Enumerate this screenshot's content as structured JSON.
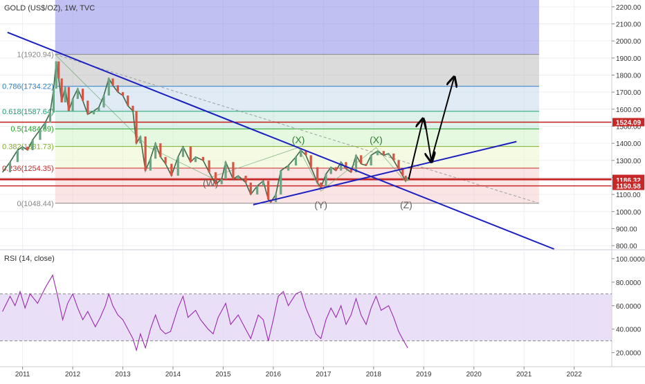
{
  "chart_data": [
    {
      "type": "line",
      "title": "GOLD (US$/OZ), 1W, TVC",
      "series_name": "GOLD (US$/OZ)",
      "y_axis_ticks": [
        "2200.00",
        "2100.00",
        "2000.00",
        "1900.00",
        "1800.00",
        "1700.00",
        "1600.00",
        "1500.00",
        "1400.00",
        "1300.00",
        "1200.00",
        "1100.00",
        "1000.00",
        "900.00",
        "800.00"
      ],
      "ylim": [
        780,
        2240
      ],
      "x_axis_ticks": [
        "2011",
        "2012",
        "2013",
        "2014",
        "2015",
        "2016",
        "2017",
        "2018",
        "2019",
        "2020",
        "2021",
        "2022"
      ],
      "xlim": [
        2010.55,
        2022.75
      ],
      "price": [
        [
          2010.6,
          1230
        ],
        [
          2010.75,
          1290
        ],
        [
          2010.9,
          1360
        ],
        [
          2011.0,
          1380
        ],
        [
          2011.1,
          1360
        ],
        [
          2011.2,
          1420
        ],
        [
          2011.35,
          1480
        ],
        [
          2011.45,
          1520
        ],
        [
          2011.55,
          1580
        ],
        [
          2011.62,
          1720
        ],
        [
          2011.67,
          1880
        ],
        [
          2011.72,
          1780
        ],
        [
          2011.78,
          1640
        ],
        [
          2011.85,
          1730
        ],
        [
          2011.92,
          1590
        ],
        [
          2012.0,
          1660
        ],
        [
          2012.1,
          1720
        ],
        [
          2012.2,
          1650
        ],
        [
          2012.3,
          1570
        ],
        [
          2012.42,
          1590
        ],
        [
          2012.52,
          1610
        ],
        [
          2012.62,
          1680
        ],
        [
          2012.72,
          1780
        ],
        [
          2012.8,
          1740
        ],
        [
          2012.9,
          1700
        ],
        [
          2013.0,
          1680
        ],
        [
          2013.1,
          1620
        ],
        [
          2013.2,
          1590
        ],
        [
          2013.27,
          1400
        ],
        [
          2013.35,
          1440
        ],
        [
          2013.45,
          1240
        ],
        [
          2013.55,
          1310
        ],
        [
          2013.65,
          1400
        ],
        [
          2013.75,
          1320
        ],
        [
          2013.85,
          1280
        ],
        [
          2013.97,
          1210
        ],
        [
          2014.1,
          1320
        ],
        [
          2014.2,
          1380
        ],
        [
          2014.35,
          1290
        ],
        [
          2014.45,
          1320
        ],
        [
          2014.6,
          1300
        ],
        [
          2014.72,
          1230
        ],
        [
          2014.85,
          1160
        ],
        [
          2014.97,
          1190
        ],
        [
          2015.05,
          1290
        ],
        [
          2015.2,
          1190
        ],
        [
          2015.3,
          1210
        ],
        [
          2015.45,
          1170
        ],
        [
          2015.55,
          1100
        ],
        [
          2015.68,
          1150
        ],
        [
          2015.8,
          1180
        ],
        [
          2015.9,
          1070
        ],
        [
          2015.95,
          1055
        ],
        [
          2016.05,
          1100
        ],
        [
          2016.15,
          1240
        ],
        [
          2016.3,
          1270
        ],
        [
          2016.45,
          1320
        ],
        [
          2016.55,
          1360
        ],
        [
          2016.65,
          1330
        ],
        [
          2016.75,
          1260
        ],
        [
          2016.88,
          1170
        ],
        [
          2016.95,
          1140
        ],
        [
          2017.05,
          1220
        ],
        [
          2017.15,
          1260
        ],
        [
          2017.25,
          1240
        ],
        [
          2017.35,
          1290
        ],
        [
          2017.45,
          1250
        ],
        [
          2017.55,
          1230
        ],
        [
          2017.65,
          1330
        ],
        [
          2017.75,
          1280
        ],
        [
          2017.85,
          1270
        ],
        [
          2017.95,
          1330
        ],
        [
          2018.08,
          1355
        ],
        [
          2018.2,
          1330
        ],
        [
          2018.3,
          1340
        ],
        [
          2018.4,
          1300
        ],
        [
          2018.5,
          1250
        ],
        [
          2018.58,
          1210
        ],
        [
          2018.64,
          1180
        ],
        [
          2018.68,
          1200
        ]
      ],
      "fibonacci_levels": [
        {
          "ratio": "1",
          "price": 1920.94,
          "label": "1(1920.94)",
          "band_color": "#b0b0b0"
        },
        {
          "ratio": "0.786",
          "price": 1734.22,
          "label": "0.786(1734.22)",
          "band_color": "#bcd3ea"
        },
        {
          "ratio": "0.618",
          "price": 1587.64,
          "label": "0.618(1587.64)",
          "band_color": "#b5e3d2"
        },
        {
          "ratio": "0.5",
          "price": 1484.69,
          "label": "0.5(1484.69)",
          "band_color": "#c5efbb"
        },
        {
          "ratio": "0.382",
          "price": 1381.73,
          "label": "0.382(1381.73)",
          "band_color": "#e8f5c0"
        },
        {
          "ratio": "0.236",
          "price": 1254.35,
          "label": "0.236(1254.35)",
          "band_color": "#f5c3c3"
        },
        {
          "ratio": "0",
          "price": 1048.44,
          "label": "0(1048.44)",
          "band_color": "#f3c7c7"
        }
      ],
      "horizontal_levels": [
        {
          "label": "1524.09",
          "price": 1524.09,
          "color": "#c62828"
        },
        {
          "label": "1191.59",
          "price": 1191.59,
          "color": "#c62828"
        },
        {
          "label": "1186.32",
          "price": 1186.32,
          "color": "#c62828"
        },
        {
          "label": "1150.58",
          "price": 1150.58,
          "color": "#c62828"
        }
      ],
      "wave_labels": [
        {
          "text": "(X)",
          "x": 2016.5,
          "y": 1400,
          "color": "#2e7d32"
        },
        {
          "text": "(X)",
          "x": 2018.05,
          "y": 1400,
          "color": "#2e7d32"
        },
        {
          "text": "(W)",
          "x": 2014.75,
          "y": 1148,
          "color": "#616161"
        },
        {
          "text": "(Y)",
          "x": 2016.95,
          "y": 1020,
          "color": "#616161"
        },
        {
          "text": "(Z)",
          "x": 2018.65,
          "y": 1020,
          "color": "#616161"
        }
      ],
      "trend_lines": [
        {
          "x1": 2010.7,
          "y1": 2050,
          "x2": 2021.6,
          "y2": 780,
          "color": "#1a1fc2"
        },
        {
          "x1": 2015.6,
          "y1": 1040,
          "x2": 2020.85,
          "y2": 1410,
          "color": "#1a1fc2"
        }
      ],
      "projection_arrows": [
        {
          "points": [
            [
              2018.7,
              1190
            ],
            [
              2018.98,
              1535
            ]
          ],
          "color": "#000000"
        },
        {
          "points": [
            [
              2019.02,
              1535
            ],
            [
              2019.15,
              1300
            ]
          ],
          "color": "#000000"
        },
        {
          "points": [
            [
              2019.15,
              1300
            ],
            [
              2019.6,
              1780
            ]
          ],
          "color": "#000000"
        }
      ]
    },
    {
      "type": "line",
      "title": "RSI (14, close)",
      "y_axis_ticks": [
        "100.0000",
        "80.0000",
        "60.0000",
        "40.0000",
        "20.0000"
      ],
      "ylim": [
        8,
        107
      ],
      "overbought": 70,
      "oversold": 30,
      "series_color": "#9c27b0",
      "values": [
        [
          2010.6,
          55
        ],
        [
          2010.75,
          68
        ],
        [
          2010.85,
          60
        ],
        [
          2010.95,
          72
        ],
        [
          2011.05,
          58
        ],
        [
          2011.15,
          70
        ],
        [
          2011.3,
          62
        ],
        [
          2011.45,
          75
        ],
        [
          2011.6,
          86
        ],
        [
          2011.7,
          68
        ],
        [
          2011.8,
          48
        ],
        [
          2011.9,
          62
        ],
        [
          2012.0,
          70
        ],
        [
          2012.1,
          58
        ],
        [
          2012.2,
          48
        ],
        [
          2012.3,
          55
        ],
        [
          2012.45,
          42
        ],
        [
          2012.55,
          50
        ],
        [
          2012.65,
          60
        ],
        [
          2012.72,
          70
        ],
        [
          2012.8,
          60
        ],
        [
          2012.9,
          52
        ],
        [
          2013.0,
          48
        ],
        [
          2013.1,
          40
        ],
        [
          2013.2,
          32
        ],
        [
          2013.27,
          22
        ],
        [
          2013.35,
          36
        ],
        [
          2013.45,
          24
        ],
        [
          2013.55,
          40
        ],
        [
          2013.65,
          52
        ],
        [
          2013.75,
          40
        ],
        [
          2013.85,
          36
        ],
        [
          2013.95,
          38
        ],
        [
          2014.1,
          58
        ],
        [
          2014.2,
          68
        ],
        [
          2014.3,
          50
        ],
        [
          2014.45,
          56
        ],
        [
          2014.55,
          48
        ],
        [
          2014.7,
          40
        ],
        [
          2014.8,
          36
        ],
        [
          2014.9,
          50
        ],
        [
          2015.05,
          62
        ],
        [
          2015.15,
          44
        ],
        [
          2015.3,
          52
        ],
        [
          2015.45,
          40
        ],
        [
          2015.55,
          32
        ],
        [
          2015.7,
          52
        ],
        [
          2015.8,
          48
        ],
        [
          2015.9,
          30
        ],
        [
          2016.0,
          48
        ],
        [
          2016.1,
          68
        ],
        [
          2016.2,
          72
        ],
        [
          2016.3,
          60
        ],
        [
          2016.45,
          70
        ],
        [
          2016.55,
          72
        ],
        [
          2016.65,
          58
        ],
        [
          2016.75,
          48
        ],
        [
          2016.85,
          36
        ],
        [
          2016.95,
          32
        ],
        [
          2017.05,
          48
        ],
        [
          2017.15,
          58
        ],
        [
          2017.25,
          50
        ],
        [
          2017.35,
          60
        ],
        [
          2017.45,
          44
        ],
        [
          2017.55,
          52
        ],
        [
          2017.65,
          66
        ],
        [
          2017.75,
          52
        ],
        [
          2017.85,
          44
        ],
        [
          2017.95,
          58
        ],
        [
          2018.05,
          68
        ],
        [
          2018.15,
          56
        ],
        [
          2018.3,
          60
        ],
        [
          2018.4,
          50
        ],
        [
          2018.5,
          38
        ],
        [
          2018.6,
          30
        ],
        [
          2018.68,
          24
        ]
      ]
    }
  ]
}
